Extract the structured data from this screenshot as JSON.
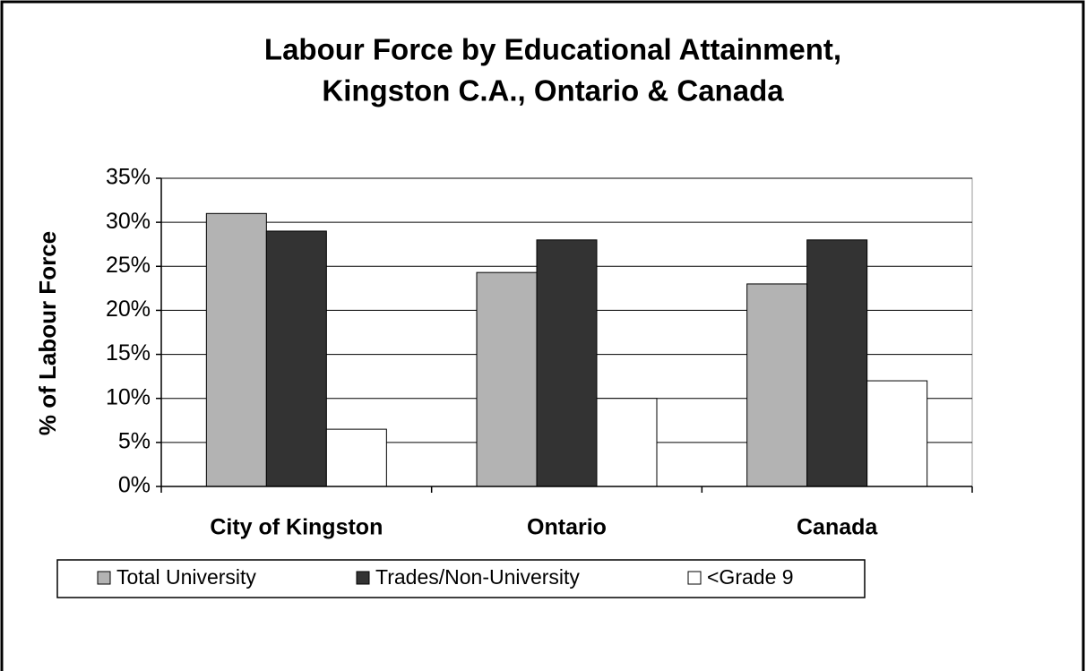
{
  "chart_data": {
    "type": "bar",
    "title": [
      "Labour Force by Educational Attainment,",
      "Kingston C.A., Ontario & Canada"
    ],
    "y_label": "% of Labour Force",
    "categories": [
      "City of Kingston",
      "Ontario",
      "Canada"
    ],
    "series": [
      {
        "name": "Total University",
        "color": "#b3b3b3",
        "values": [
          31,
          24.3,
          23
        ]
      },
      {
        "name": "Trades/Non-University",
        "color": "#333333",
        "values": [
          29,
          28,
          28
        ]
      },
      {
        "name": "<Grade 9",
        "color": "#ffffff",
        "values": [
          6.5,
          10,
          12
        ]
      }
    ],
    "ylim": [
      0,
      35
    ],
    "yticks": [
      {
        "value": 0,
        "label": "0%"
      },
      {
        "value": 5,
        "label": "5%"
      },
      {
        "value": 10,
        "label": "10%"
      },
      {
        "value": 15,
        "label": "15%"
      },
      {
        "value": 20,
        "label": "20%"
      },
      {
        "value": 25,
        "label": "25%"
      },
      {
        "value": 30,
        "label": "30%"
      },
      {
        "value": 35,
        "label": "35%"
      }
    ],
    "grid": true,
    "legend": "bottom"
  }
}
